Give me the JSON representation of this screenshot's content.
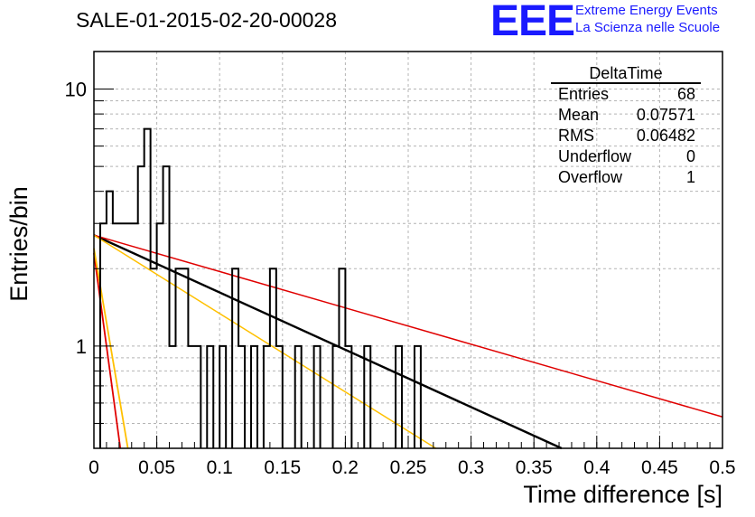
{
  "title": "SALE-01-2015-02-20-00028",
  "logo": {
    "letters": "EEE",
    "line1": "Extreme Energy Events",
    "line2": "La Scienza nelle Scuole"
  },
  "stats": {
    "name": "DeltaTime",
    "rows": [
      {
        "label": "Entries",
        "value": "68"
      },
      {
        "label": "Mean",
        "value": "0.07571"
      },
      {
        "label": "RMS",
        "value": "0.06482"
      },
      {
        "label": "Underflow",
        "value": "0"
      },
      {
        "label": "Overflow",
        "value": "1"
      }
    ]
  },
  "chart_data": {
    "type": "histogram",
    "xlabel": "Time difference [s]",
    "ylabel": "Entries/bin",
    "xlim": [
      0,
      0.5
    ],
    "ylim": [
      0.4,
      14
    ],
    "yscale": "log",
    "grid": true,
    "x_ticks": [
      "0",
      "0.05",
      "0.1",
      "0.15",
      "0.2",
      "0.25",
      "0.3",
      "0.35",
      "0.4",
      "0.45",
      "0.5"
    ],
    "y_tick_labels": [
      1,
      10
    ],
    "bin_width": 0.005,
    "bins": [
      {
        "x": 0.005,
        "y": 3
      },
      {
        "x": 0.01,
        "y": 4
      },
      {
        "x": 0.015,
        "y": 3
      },
      {
        "x": 0.02,
        "y": 3
      },
      {
        "x": 0.025,
        "y": 3
      },
      {
        "x": 0.03,
        "y": 3
      },
      {
        "x": 0.035,
        "y": 5
      },
      {
        "x": 0.04,
        "y": 7
      },
      {
        "x": 0.045,
        "y": 2
      },
      {
        "x": 0.05,
        "y": 3
      },
      {
        "x": 0.055,
        "y": 5
      },
      {
        "x": 0.06,
        "y": 1
      },
      {
        "x": 0.065,
        "y": 2
      },
      {
        "x": 0.07,
        "y": 2
      },
      {
        "x": 0.075,
        "y": 1
      },
      {
        "x": 0.08,
        "y": 1
      },
      {
        "x": 0.09,
        "y": 1
      },
      {
        "x": 0.1,
        "y": 1
      },
      {
        "x": 0.11,
        "y": 2
      },
      {
        "x": 0.115,
        "y": 1
      },
      {
        "x": 0.125,
        "y": 1
      },
      {
        "x": 0.135,
        "y": 1
      },
      {
        "x": 0.14,
        "y": 2
      },
      {
        "x": 0.145,
        "y": 1
      },
      {
        "x": 0.16,
        "y": 1
      },
      {
        "x": 0.175,
        "y": 1
      },
      {
        "x": 0.19,
        "y": 1
      },
      {
        "x": 0.195,
        "y": 2
      },
      {
        "x": 0.2,
        "y": 1
      },
      {
        "x": 0.215,
        "y": 1
      },
      {
        "x": 0.24,
        "y": 1
      },
      {
        "x": 0.255,
        "y": 1
      }
    ],
    "fits": [
      {
        "color": "#000000",
        "width": 2.4,
        "points": [
          [
            0,
            2.7
          ],
          [
            0.372,
            0.4
          ]
        ]
      },
      {
        "color": "#e00000",
        "width": 1.5,
        "points": [
          [
            0,
            2.7
          ],
          [
            0.5,
            0.53
          ]
        ]
      },
      {
        "color": "#ffc000",
        "width": 1.5,
        "points": [
          [
            0,
            2.7
          ],
          [
            0.272,
            0.4
          ]
        ]
      },
      {
        "color": "#e00000",
        "width": 1.8,
        "points": [
          [
            0.0,
            2.3
          ],
          [
            0.021,
            0.4
          ]
        ]
      },
      {
        "color": "#ffc000",
        "width": 1.8,
        "points": [
          [
            0.0,
            2.4
          ],
          [
            0.027,
            0.4
          ]
        ]
      }
    ]
  }
}
